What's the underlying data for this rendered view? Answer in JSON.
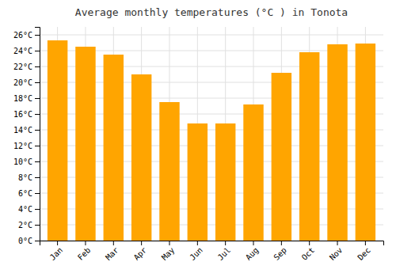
{
  "chart_data": {
    "type": "bar",
    "title": "Average monthly temperatures (°C ) in Tonota",
    "categories": [
      "Jan",
      "Feb",
      "Mar",
      "Apr",
      "May",
      "Jun",
      "Jul",
      "Aug",
      "Sep",
      "Oct",
      "Nov",
      "Dec"
    ],
    "values": [
      25.3,
      24.5,
      23.5,
      21.0,
      17.5,
      14.8,
      14.8,
      17.2,
      21.2,
      23.8,
      24.8,
      24.9
    ],
    "color": "#FFA500",
    "ylim": [
      0,
      27
    ],
    "yticks": [
      {
        "value": 0,
        "label": "0°C"
      },
      {
        "value": 2,
        "label": "2°C"
      },
      {
        "value": 4,
        "label": "4°C"
      },
      {
        "value": 6,
        "label": "6°C"
      },
      {
        "value": 8,
        "label": "8°C"
      },
      {
        "value": 10,
        "label": "10°C"
      },
      {
        "value": 12,
        "label": "12°C"
      },
      {
        "value": 14,
        "label": "14°C"
      },
      {
        "value": 16,
        "label": "16°C"
      },
      {
        "value": 18,
        "label": "18°C"
      },
      {
        "value": 20,
        "label": "20°C"
      },
      {
        "value": 22,
        "label": "22°C"
      },
      {
        "value": 24,
        "label": "24°C"
      },
      {
        "value": 26,
        "label": "26°C"
      }
    ],
    "grid": true
  }
}
